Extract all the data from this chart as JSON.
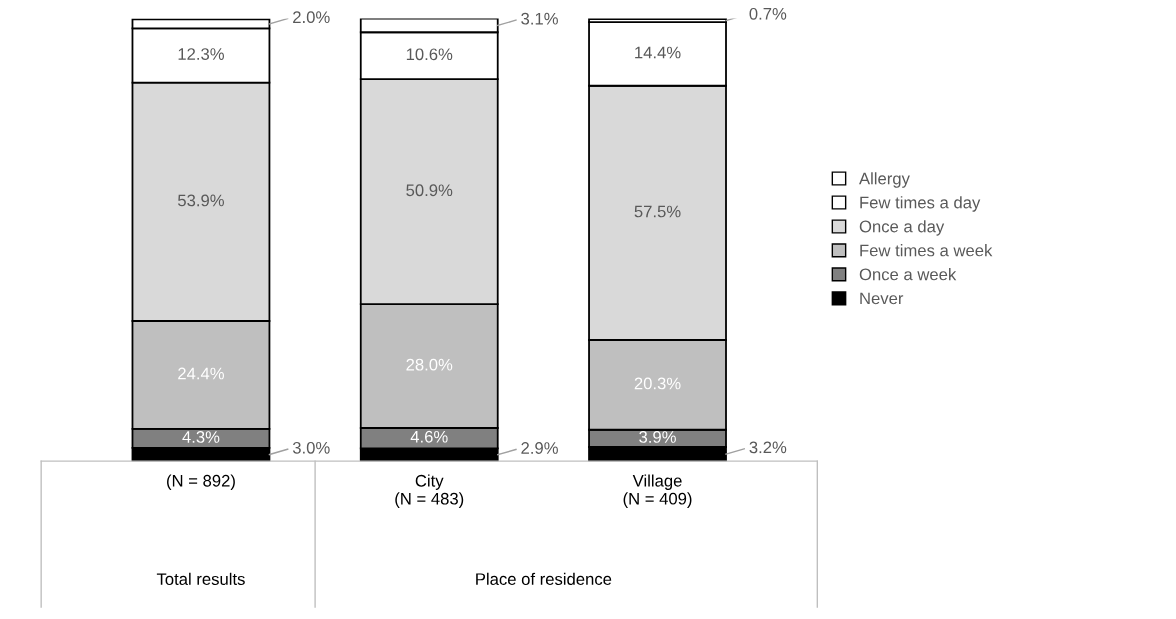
{
  "chart_data": {
    "type": "bar",
    "stacked": true,
    "legend": "right",
    "categories": [
      "(N = 892)",
      "City\n(N = 483)",
      "Village\n(N = 409)"
    ],
    "annotations": [
      "Total results",
      "Place of residence"
    ],
    "series": [
      {
        "name": "Never",
        "color": "#000000",
        "values": [
          3.0,
          2.9,
          3.2
        ],
        "value_labels": [
          "3.0%",
          "2.9%",
          "3.2%"
        ]
      },
      {
        "name": "Once a week",
        "color": "#808080",
        "values": [
          4.3,
          4.6,
          3.9
        ],
        "value_labels": [
          "4.3%",
          "4.6%",
          "3.9%"
        ]
      },
      {
        "name": "Few times a week",
        "color": "#bfbfbf",
        "values": [
          24.4,
          28.0,
          20.3
        ],
        "value_labels": [
          "24.4%",
          "28.0%",
          "20.3%"
        ]
      },
      {
        "name": "Once a day",
        "color": "#d9d9d9",
        "values": [
          53.9,
          50.9,
          57.5
        ],
        "value_labels": [
          "53.9%",
          "50.9%",
          "57.5%"
        ]
      },
      {
        "name": "Few times a day",
        "color": "#ffffff",
        "values": [
          12.3,
          10.6,
          14.4
        ],
        "value_labels": [
          "12.3%",
          "10.6%",
          "14.4%"
        ]
      },
      {
        "name": "Allergy",
        "color": "#ffffff",
        "values": [
          2.0,
          3.1,
          0.7
        ],
        "value_labels": [
          "2.0%",
          "3.1%",
          "0.7%"
        ]
      }
    ]
  }
}
